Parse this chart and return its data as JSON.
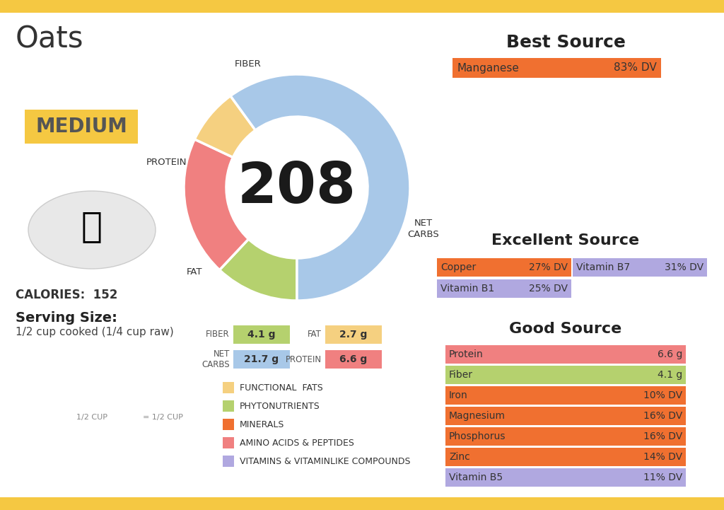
{
  "title": "Oats",
  "background_color": "#ffffff",
  "border_color": "#F5C842",
  "calories_label": "152",
  "donut_center_value": "208",
  "medium_label": "MEDIUM",
  "medium_bg": "#F5C842",
  "serving_size": "Serving Size:",
  "serving_desc": "1/2 cup cooked (1/4 cup raw)",
  "donut_segments": [
    {
      "label": "FIBER",
      "value": 0.12,
      "color": "#b5d16e"
    },
    {
      "label": "PROTEIN",
      "value": 0.2,
      "color": "#f08080"
    },
    {
      "label": "FAT",
      "value": 0.08,
      "color": "#f5d080"
    },
    {
      "label": "NET\nCARBS",
      "value": 0.6,
      "color": "#a8c8e8"
    }
  ],
  "macro_boxes": [
    {
      "label": "FIBER",
      "value": "4.1 g",
      "color": "#b5d16e"
    },
    {
      "label": "FAT",
      "value": "2.7 g",
      "color": "#f5d080"
    },
    {
      "label": "NET\nCARBS",
      "value": "21.7 g",
      "color": "#a8c8e8"
    },
    {
      "label": "PROTEIN",
      "value": "6.6 g",
      "color": "#f08080"
    }
  ],
  "legend_items": [
    {
      "label": "FUNCTIONAL  FATS",
      "color": "#f5d080"
    },
    {
      "label": "PHYTONUTRIENTS",
      "color": "#b5d16e"
    },
    {
      "label": "MINERALS",
      "color": "#f07030"
    },
    {
      "label": "AMINO ACIDS & PEPTIDES",
      "color": "#f08080"
    },
    {
      "label": "VITAMINS & VITAMINLIKE COMPOUNDS",
      "color": "#b0a8e0"
    }
  ],
  "best_source_title": "Best Source",
  "best_source_items": [
    {
      "label": "Manganese",
      "value": "83% DV",
      "color": "#f07030"
    }
  ],
  "excellent_source_title": "Excellent Source",
  "excellent_source_items": [
    {
      "label": "Copper",
      "value": "27% DV",
      "color": "#f07030"
    },
    {
      "label": "Vitamin B7",
      "value": "31% DV",
      "color": "#b0a8e0"
    },
    {
      "label": "Vitamin B1",
      "value": "25% DV",
      "color": "#b0a8e0"
    }
  ],
  "good_source_title": "Good Source",
  "good_source_items": [
    {
      "label": "Protein",
      "value": "6.6 g",
      "color": "#f08080"
    },
    {
      "label": "Fiber",
      "value": "4.1 g",
      "color": "#b5d16e"
    },
    {
      "label": "Iron",
      "value": "10% DV",
      "color": "#f07030"
    },
    {
      "label": "Magnesium",
      "value": "16% DV",
      "color": "#f07030"
    },
    {
      "label": "Phosphorus",
      "value": "16% DV",
      "color": "#f07030"
    },
    {
      "label": "Zinc",
      "value": "14% DV",
      "color": "#f07030"
    },
    {
      "label": "Vitamin B5",
      "value": "11% DV",
      "color": "#b0a8e0"
    }
  ]
}
